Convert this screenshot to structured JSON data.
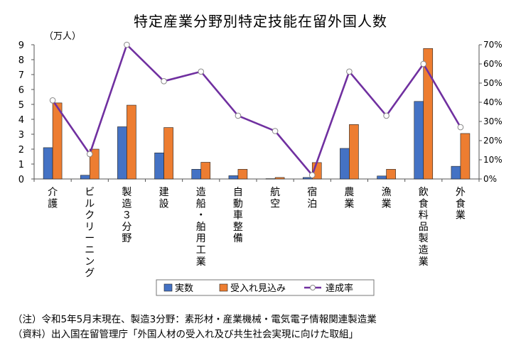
{
  "chart_data": {
    "type": "bar",
    "title": "特定産業分野別特定技能在留外国人数",
    "unit_label": "（万人）",
    "categories": [
      "介護",
      "ビルクリーニング",
      "製造3分野",
      "建設",
      "造船・舶用工業",
      "自動車整備",
      "航空",
      "宿泊",
      "農業",
      "漁業",
      "飲食料品製造業",
      "外食業"
    ],
    "category_labels": [
      "介護",
      "ビルクリーニング",
      "製造３分野",
      "建設",
      "造船・舶用工業",
      "自動車整備",
      "航空",
      "宿泊",
      "農業",
      "漁業",
      "飲食料品製造業",
      "外食業"
    ],
    "ylim": [
      0,
      9
    ],
    "yticks": [
      "0",
      "1",
      "2",
      "3",
      "4",
      "5",
      "6",
      "7",
      "8",
      "9"
    ],
    "y2lim": [
      0,
      70
    ],
    "y2ticks": [
      "0%",
      "10%",
      "20%",
      "30%",
      "40%",
      "50%",
      "60%",
      "70%"
    ],
    "series": [
      {
        "name": "実数",
        "type": "bar",
        "axis": "left",
        "color": "#4472C4",
        "values": [
          2.1,
          0.25,
          3.5,
          1.75,
          0.65,
          0.22,
          0.02,
          0.1,
          2.05,
          0.2,
          5.2,
          0.85
        ]
      },
      {
        "name": "受入れ見込み",
        "type": "bar",
        "axis": "left",
        "color": "#ED7D31",
        "values": [
          5.1,
          2.0,
          4.95,
          3.45,
          1.12,
          0.65,
          0.1,
          1.1,
          3.65,
          0.65,
          8.75,
          3.05
        ]
      },
      {
        "name": "達成率",
        "type": "line",
        "axis": "right",
        "color": "#7030A0",
        "values": [
          41,
          13,
          70,
          51,
          56,
          33,
          25,
          2,
          56,
          33,
          60,
          27
        ]
      }
    ],
    "legend_position": "bottom",
    "grid": false
  },
  "notes": {
    "line1": "（注）令和5年5月末現在、製造3分野：素形材・産業機械・電気電子情報関連製造業",
    "line2": "（資料）出入国在留管理庁「外国人材の受入れ及び共生社会実現に向けた取組」"
  }
}
